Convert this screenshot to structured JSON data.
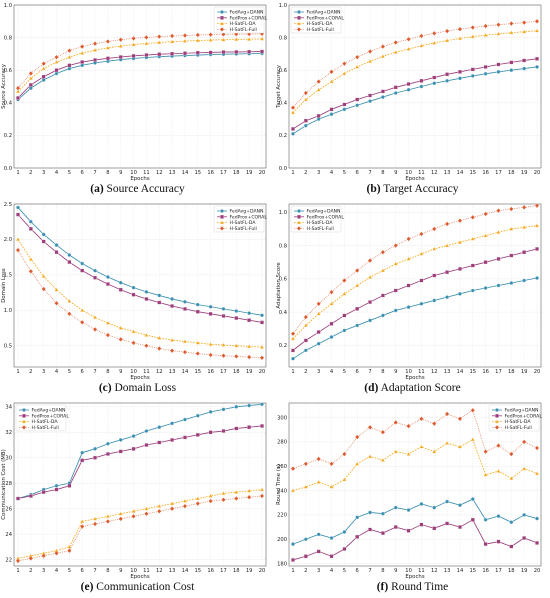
{
  "colors": {
    "FedAvg+DANN": "#3a8fb0",
    "FedProx+CORAL": "#9c3e7a",
    "H-SatFL-DA": "#f4a71c",
    "H-SatFL-Full": "#dd5a2e"
  },
  "chart_data": [
    {
      "type": "line",
      "caption_letter": "(a)",
      "caption_text": "Source Accuracy",
      "xlabel": "Epochs",
      "ylabel": "Source Accuracy",
      "ylim": [
        0,
        1.0
      ],
      "yticks": [
        "0.0",
        "0.2",
        "0.4",
        "0.6",
        "0.8",
        "1.0"
      ],
      "ytick_values": [
        0,
        0.2,
        0.4,
        0.6,
        0.8,
        1.0
      ],
      "legend_position": "top-right",
      "grid": true,
      "x": [
        1,
        2,
        3,
        4,
        5,
        6,
        7,
        8,
        9,
        10,
        11,
        12,
        13,
        14,
        15,
        16,
        17,
        18,
        19,
        20
      ],
      "series": [
        {
          "name": "FedAvg+DANN",
          "values": [
            0.42,
            0.49,
            0.54,
            0.58,
            0.61,
            0.63,
            0.645,
            0.655,
            0.665,
            0.672,
            0.678,
            0.683,
            0.687,
            0.69,
            0.693,
            0.696,
            0.698,
            0.7,
            0.701,
            0.703
          ]
        },
        {
          "name": "FedProx+CORAL",
          "values": [
            0.43,
            0.51,
            0.56,
            0.6,
            0.63,
            0.65,
            0.663,
            0.673,
            0.681,
            0.688,
            0.693,
            0.698,
            0.701,
            0.704,
            0.707,
            0.709,
            0.711,
            0.712,
            0.713,
            0.715
          ]
        },
        {
          "name": "H-SatFL-DA",
          "values": [
            0.47,
            0.55,
            0.61,
            0.65,
            0.68,
            0.705,
            0.723,
            0.737,
            0.748,
            0.757,
            0.764,
            0.77,
            0.775,
            0.779,
            0.782,
            0.785,
            0.787,
            0.789,
            0.79,
            0.792
          ]
        },
        {
          "name": "H-SatFL-Full",
          "values": [
            0.49,
            0.58,
            0.64,
            0.68,
            0.72,
            0.745,
            0.763,
            0.776,
            0.787,
            0.795,
            0.801,
            0.806,
            0.81,
            0.813,
            0.816,
            0.818,
            0.82,
            0.821,
            0.822,
            0.823
          ]
        }
      ]
    },
    {
      "type": "line",
      "caption_letter": "(b)",
      "caption_text": "Target Accuracy",
      "xlabel": "Epochs",
      "ylabel": "Target Accuracy",
      "ylim": [
        0,
        1.0
      ],
      "yticks": [
        "0.0",
        "0.2",
        "0.4",
        "0.6",
        "0.8",
        "1.0"
      ],
      "ytick_values": [
        0,
        0.2,
        0.4,
        0.6,
        0.8,
        1.0
      ],
      "legend_position": "top-left",
      "grid": true,
      "x": [
        1,
        2,
        3,
        4,
        5,
        6,
        7,
        8,
        9,
        10,
        11,
        12,
        13,
        14,
        15,
        16,
        17,
        18,
        19,
        20
      ],
      "series": [
        {
          "name": "FedAvg+DANN",
          "values": [
            0.21,
            0.26,
            0.3,
            0.33,
            0.36,
            0.385,
            0.41,
            0.435,
            0.46,
            0.48,
            0.5,
            0.52,
            0.535,
            0.55,
            0.565,
            0.578,
            0.59,
            0.6,
            0.61,
            0.62
          ]
        },
        {
          "name": "FedProx+CORAL",
          "values": [
            0.24,
            0.29,
            0.32,
            0.36,
            0.39,
            0.42,
            0.445,
            0.47,
            0.495,
            0.515,
            0.535,
            0.555,
            0.575,
            0.59,
            0.605,
            0.62,
            0.635,
            0.648,
            0.66,
            0.67
          ]
        },
        {
          "name": "H-SatFL-DA",
          "values": [
            0.34,
            0.42,
            0.48,
            0.53,
            0.58,
            0.62,
            0.655,
            0.685,
            0.71,
            0.73,
            0.75,
            0.767,
            0.782,
            0.795,
            0.806,
            0.815,
            0.823,
            0.83,
            0.836,
            0.842
          ]
        },
        {
          "name": "H-SatFL-Full",
          "values": [
            0.37,
            0.46,
            0.53,
            0.59,
            0.64,
            0.68,
            0.715,
            0.745,
            0.77,
            0.79,
            0.81,
            0.826,
            0.84,
            0.852,
            0.862,
            0.871,
            0.879,
            0.886,
            0.892,
            0.9
          ]
        }
      ]
    },
    {
      "type": "line",
      "caption_letter": "(c)",
      "caption_text": "Domain Loss",
      "xlabel": "Epochs",
      "ylabel": "Domain Loss",
      "ylim": [
        0.2,
        2.5
      ],
      "yticks": [
        "0.5",
        "1.0",
        "1.5",
        "2.0",
        "2.5"
      ],
      "ytick_values": [
        0.5,
        1.0,
        1.5,
        2.0,
        2.5
      ],
      "legend_position": "top-right",
      "grid": true,
      "x": [
        1,
        2,
        3,
        4,
        5,
        6,
        7,
        8,
        9,
        10,
        11,
        12,
        13,
        14,
        15,
        16,
        17,
        18,
        19,
        20
      ],
      "series": [
        {
          "name": "FedAvg+DANN",
          "values": [
            2.45,
            2.25,
            2.07,
            1.92,
            1.78,
            1.66,
            1.56,
            1.47,
            1.39,
            1.32,
            1.26,
            1.21,
            1.16,
            1.12,
            1.08,
            1.05,
            1.02,
            0.99,
            0.96,
            0.93
          ]
        },
        {
          "name": "FedProx+CORAL",
          "values": [
            2.35,
            2.15,
            1.97,
            1.82,
            1.68,
            1.56,
            1.46,
            1.37,
            1.29,
            1.22,
            1.16,
            1.11,
            1.06,
            1.02,
            0.98,
            0.95,
            0.92,
            0.89,
            0.86,
            0.83
          ]
        },
        {
          "name": "H-SatFL-DA",
          "values": [
            2.0,
            1.72,
            1.48,
            1.29,
            1.13,
            1.0,
            0.9,
            0.82,
            0.75,
            0.7,
            0.65,
            0.61,
            0.58,
            0.56,
            0.54,
            0.52,
            0.51,
            0.5,
            0.49,
            0.48
          ]
        },
        {
          "name": "H-SatFL-Full",
          "values": [
            1.85,
            1.55,
            1.3,
            1.1,
            0.95,
            0.83,
            0.73,
            0.65,
            0.59,
            0.54,
            0.5,
            0.46,
            0.43,
            0.41,
            0.39,
            0.37,
            0.36,
            0.35,
            0.34,
            0.33
          ]
        }
      ]
    },
    {
      "type": "line",
      "caption_letter": "(d)",
      "caption_text": "Adaptation Score",
      "xlabel": "Epochs",
      "ylabel": "Adaptation Score",
      "ylim": [
        0.07,
        1.05
      ],
      "yticks": [
        "0.2",
        "0.4",
        "0.6",
        "0.8",
        "1.0"
      ],
      "ytick_values": [
        0.2,
        0.4,
        0.6,
        0.8,
        1.0
      ],
      "legend_position": "top-left",
      "grid": true,
      "x": [
        1,
        2,
        3,
        4,
        5,
        6,
        7,
        8,
        9,
        10,
        11,
        12,
        13,
        14,
        15,
        16,
        17,
        18,
        19,
        20
      ],
      "series": [
        {
          "name": "FedAvg+DANN",
          "values": [
            0.12,
            0.17,
            0.21,
            0.25,
            0.29,
            0.32,
            0.35,
            0.38,
            0.41,
            0.43,
            0.45,
            0.47,
            0.49,
            0.51,
            0.53,
            0.545,
            0.56,
            0.575,
            0.59,
            0.605
          ]
        },
        {
          "name": "FedProx+CORAL",
          "values": [
            0.17,
            0.23,
            0.28,
            0.33,
            0.38,
            0.42,
            0.46,
            0.5,
            0.53,
            0.56,
            0.59,
            0.62,
            0.64,
            0.66,
            0.68,
            0.7,
            0.72,
            0.74,
            0.76,
            0.78
          ]
        },
        {
          "name": "H-SatFL-DA",
          "values": [
            0.24,
            0.32,
            0.39,
            0.45,
            0.51,
            0.56,
            0.61,
            0.65,
            0.69,
            0.72,
            0.75,
            0.78,
            0.8,
            0.82,
            0.84,
            0.86,
            0.88,
            0.9,
            0.91,
            0.92
          ]
        },
        {
          "name": "H-SatFL-Full",
          "values": [
            0.27,
            0.37,
            0.45,
            0.52,
            0.59,
            0.65,
            0.71,
            0.76,
            0.8,
            0.84,
            0.87,
            0.9,
            0.93,
            0.95,
            0.97,
            0.99,
            1.01,
            1.02,
            1.03,
            1.04
          ]
        }
      ]
    },
    {
      "type": "line",
      "caption_letter": "(e)",
      "caption_text": "Communication Cost",
      "xlabel": "Epochs",
      "ylabel": "Communication Cost (MB)",
      "ylim": [
        21.5,
        34.3
      ],
      "yticks": [
        "22",
        "24",
        "26",
        "28",
        "30",
        "32",
        "34"
      ],
      "ytick_values": [
        22,
        24,
        26,
        28,
        30,
        32,
        34
      ],
      "legend_position": "top-left",
      "grid": true,
      "x": [
        1,
        2,
        3,
        4,
        5,
        6,
        7,
        8,
        9,
        10,
        11,
        12,
        13,
        14,
        15,
        16,
        17,
        18,
        19,
        20
      ],
      "series": [
        {
          "name": "FedAvg+DANN",
          "values": [
            26.8,
            27.1,
            27.5,
            27.8,
            28.0,
            30.4,
            30.7,
            31.1,
            31.4,
            31.7,
            32.1,
            32.4,
            32.7,
            33.0,
            33.3,
            33.6,
            33.8,
            34.0,
            34.1,
            34.2
          ]
        },
        {
          "name": "FedProx+CORAL",
          "values": [
            26.8,
            27.0,
            27.3,
            27.5,
            27.8,
            29.8,
            30.0,
            30.3,
            30.5,
            30.7,
            31.0,
            31.2,
            31.4,
            31.6,
            31.8,
            32.0,
            32.1,
            32.3,
            32.4,
            32.5
          ]
        },
        {
          "name": "H-SatFL-DA",
          "values": [
            22.1,
            22.3,
            22.5,
            22.7,
            23.0,
            25.0,
            25.2,
            25.4,
            25.6,
            25.8,
            26.0,
            26.2,
            26.4,
            26.6,
            26.8,
            27.0,
            27.2,
            27.3,
            27.4,
            27.5
          ]
        },
        {
          "name": "H-SatFL-Full",
          "values": [
            21.9,
            22.1,
            22.3,
            22.5,
            22.7,
            24.6,
            24.8,
            25.0,
            25.2,
            25.4,
            25.6,
            25.8,
            26.0,
            26.2,
            26.4,
            26.6,
            26.7,
            26.8,
            26.9,
            27.0
          ]
        }
      ]
    },
    {
      "type": "line",
      "caption_letter": "(f)",
      "caption_text": "Round Time",
      "xlabel": "Epochs",
      "ylabel": "Round Time (s)",
      "ylim": [
        178,
        312
      ],
      "yticks": [
        "180",
        "200",
        "220",
        "240",
        "260",
        "280",
        "300"
      ],
      "ytick_values": [
        180,
        200,
        220,
        240,
        260,
        280,
        300
      ],
      "legend_position": "top-right",
      "grid": true,
      "x": [
        1,
        2,
        3,
        4,
        5,
        6,
        7,
        8,
        9,
        10,
        11,
        12,
        13,
        14,
        15,
        16,
        17,
        18,
        19,
        20
      ],
      "series": [
        {
          "name": "FedAvg+DANN",
          "values": [
            196,
            200,
            204,
            201,
            206,
            218,
            222,
            221,
            226,
            224,
            229,
            226,
            231,
            228,
            233,
            216,
            219,
            214,
            220,
            217
          ]
        },
        {
          "name": "FedProx+CORAL",
          "values": [
            183,
            186,
            190,
            186,
            192,
            202,
            208,
            205,
            210,
            207,
            212,
            209,
            213,
            210,
            216,
            196,
            198,
            194,
            201,
            197
          ]
        },
        {
          "name": "H-SatFL-DA",
          "values": [
            240,
            243,
            247,
            243,
            249,
            262,
            268,
            265,
            272,
            270,
            276,
            272,
            279,
            276,
            282,
            253,
            256,
            250,
            258,
            254
          ]
        },
        {
          "name": "H-SatFL-Full",
          "values": [
            258,
            262,
            266,
            262,
            270,
            284,
            292,
            288,
            296,
            293,
            299,
            295,
            303,
            299,
            306,
            272,
            277,
            270,
            280,
            275
          ]
        }
      ]
    }
  ]
}
